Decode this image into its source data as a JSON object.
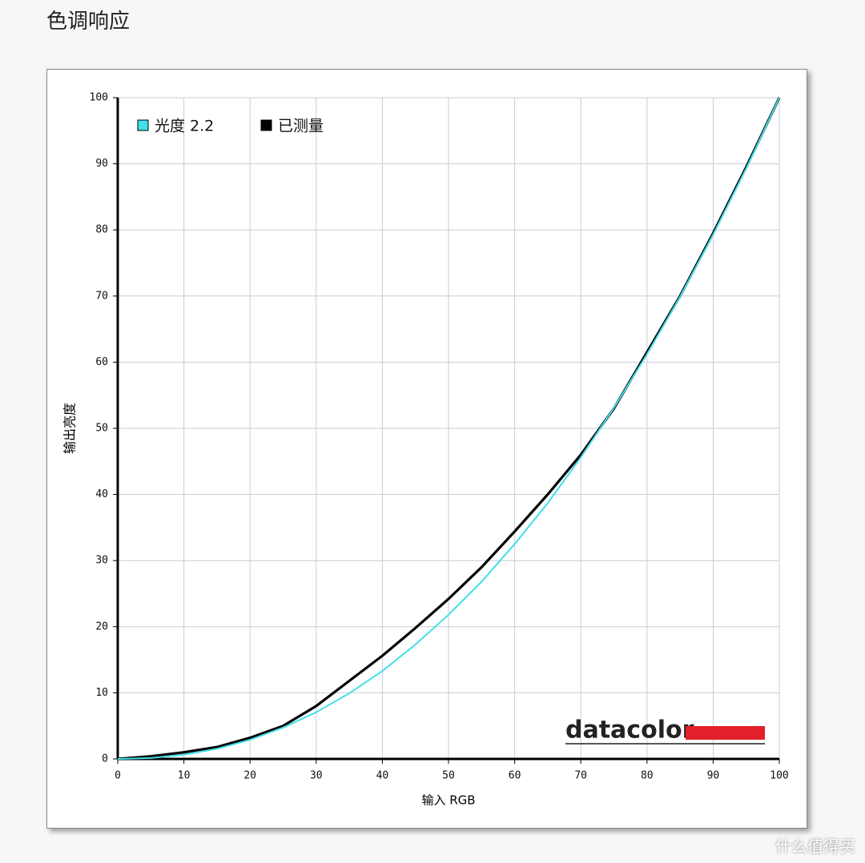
{
  "page_title": "色调响应",
  "watermark": "什么值得买",
  "chart_data": {
    "type": "line",
    "logo_text": "datacolor",
    "x_label": "输入 RGB",
    "y_label": "输出亮度",
    "x": [
      0,
      5,
      10,
      15,
      20,
      25,
      30,
      35,
      40,
      45,
      50,
      55,
      60,
      65,
      70,
      75,
      80,
      85,
      90,
      95,
      100
    ],
    "series": [
      {
        "name": "光度 2.2",
        "color": "#40e0e8",
        "values": [
          0,
          0.14,
          0.63,
          1.54,
          2.9,
          4.75,
          7.06,
          9.92,
          13.3,
          17.3,
          21.8,
          26.8,
          32.5,
          38.7,
          45.6,
          53.1,
          61.2,
          69.9,
          79.3,
          89.3,
          100
        ]
      },
      {
        "name": "已测量",
        "color": "#000000",
        "values": [
          0,
          0.4,
          1.0,
          1.8,
          3.2,
          5.0,
          8.0,
          11.8,
          15.6,
          19.8,
          24.2,
          29.0,
          34.4,
          40.0,
          46.0,
          53.0,
          61.5,
          70.0,
          79.5,
          89.5,
          100
        ]
      }
    ],
    "xlim": [
      0,
      100
    ],
    "ylim": [
      0,
      100
    ],
    "xticks": [
      0,
      10,
      20,
      30,
      40,
      50,
      60,
      70,
      80,
      90,
      100
    ],
    "yticks": [
      0,
      10,
      20,
      30,
      40,
      50,
      60,
      70,
      80,
      90,
      100
    ],
    "grid": true
  }
}
